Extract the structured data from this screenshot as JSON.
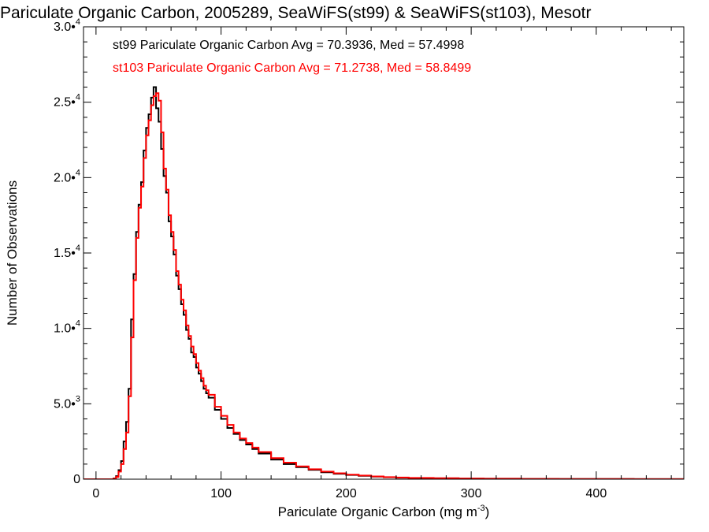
{
  "chart_data": {
    "type": "line",
    "step": true,
    "title": "Pariculate Organic Carbon, 2005289, SeaWiFS(st99) & SeaWiFS(st103), Mesotr",
    "xlabel": "Pariculate Organic Carbon (mg m",
    "xlabel_sup": "-3",
    "xlabel_end": ")",
    "ylabel": "Number of Observations",
    "xlim": [
      -10,
      470
    ],
    "ylim": [
      0,
      30000
    ],
    "grid": false,
    "legend_position": "top-left",
    "xticks": [
      {
        "value": 0,
        "label": "0"
      },
      {
        "value": 100,
        "label": "100"
      },
      {
        "value": 200,
        "label": "200"
      },
      {
        "value": 300,
        "label": "300"
      },
      {
        "value": 400,
        "label": "400"
      }
    ],
    "yticks": [
      {
        "value": 0,
        "mant": "0",
        "exp": ""
      },
      {
        "value": 5000,
        "mant": "5.0•",
        "exp": "3"
      },
      {
        "value": 10000,
        "mant": "1.0•",
        "exp": "4"
      },
      {
        "value": 15000,
        "mant": "1.5•",
        "exp": "4"
      },
      {
        "value": 20000,
        "mant": "2.0•",
        "exp": "4"
      },
      {
        "value": 25000,
        "mant": "2.5•",
        "exp": "4"
      },
      {
        "value": 30000,
        "mant": "3.0•",
        "exp": "4"
      }
    ],
    "series": [
      {
        "name": "st99",
        "label": "st99 Pariculate Organic Carbon Avg = 70.3936, Med = 57.4998",
        "color": "#000000",
        "x": [
          10,
          12,
          14,
          16,
          18,
          20,
          22,
          24,
          26,
          28,
          30,
          32,
          34,
          36,
          38,
          40,
          42,
          44,
          46,
          48,
          50,
          52,
          54,
          56,
          58,
          60,
          62,
          64,
          66,
          68,
          70,
          72,
          74,
          76,
          78,
          80,
          82,
          84,
          86,
          88,
          90,
          95,
          100,
          105,
          110,
          115,
          120,
          125,
          130,
          140,
          150,
          160,
          170,
          180,
          190,
          200,
          210,
          220,
          230,
          240,
          250,
          270,
          290,
          310,
          340,
          370,
          400,
          430,
          470
        ],
        "values": [
          0,
          0,
          50,
          200,
          600,
          1200,
          2500,
          3800,
          6000,
          10600,
          13600,
          16400,
          18200,
          19700,
          21800,
          23300,
          24200,
          25300,
          26000,
          24600,
          23700,
          21900,
          20100,
          19000,
          17100,
          16100,
          14900,
          13500,
          12600,
          11600,
          10900,
          9900,
          9300,
          8400,
          8100,
          7400,
          7000,
          6500,
          6000,
          5700,
          5400,
          4600,
          4000,
          3400,
          3000,
          2600,
          2300,
          2000,
          1700,
          1300,
          1000,
          800,
          620,
          460,
          360,
          280,
          220,
          170,
          130,
          100,
          80,
          60,
          40,
          30,
          20,
          15,
          10,
          5,
          5
        ]
      },
      {
        "name": "st103",
        "label": "st103 Pariculate Organic Carbon Avg = 71.2738, Med = 58.8499",
        "color": "#ff0000",
        "x": [
          10,
          12,
          14,
          16,
          18,
          20,
          22,
          24,
          26,
          28,
          30,
          32,
          34,
          36,
          38,
          40,
          42,
          44,
          46,
          48,
          50,
          52,
          54,
          56,
          58,
          60,
          62,
          64,
          66,
          68,
          70,
          72,
          74,
          76,
          78,
          80,
          82,
          84,
          86,
          88,
          90,
          95,
          100,
          105,
          110,
          115,
          120,
          125,
          130,
          140,
          150,
          160,
          170,
          180,
          190,
          200,
          210,
          220,
          230,
          240,
          250,
          270,
          290,
          310,
          340,
          370,
          400,
          430,
          470
        ],
        "values": [
          0,
          0,
          30,
          150,
          500,
          1000,
          2000,
          3100,
          5500,
          9400,
          13200,
          16000,
          18000,
          19400,
          21300,
          22800,
          23800,
          24800,
          25400,
          25600,
          25100,
          23000,
          20600,
          19200,
          17500,
          16400,
          15200,
          13800,
          12900,
          11900,
          11200,
          10200,
          9500,
          8800,
          8300,
          7700,
          7200,
          6700,
          6200,
          5900,
          5600,
          4800,
          4200,
          3600,
          3100,
          2700,
          2400,
          2100,
          1800,
          1400,
          1100,
          850,
          660,
          500,
          390,
          300,
          240,
          180,
          140,
          110,
          85,
          65,
          45,
          32,
          22,
          16,
          11,
          6,
          5
        ]
      }
    ]
  }
}
